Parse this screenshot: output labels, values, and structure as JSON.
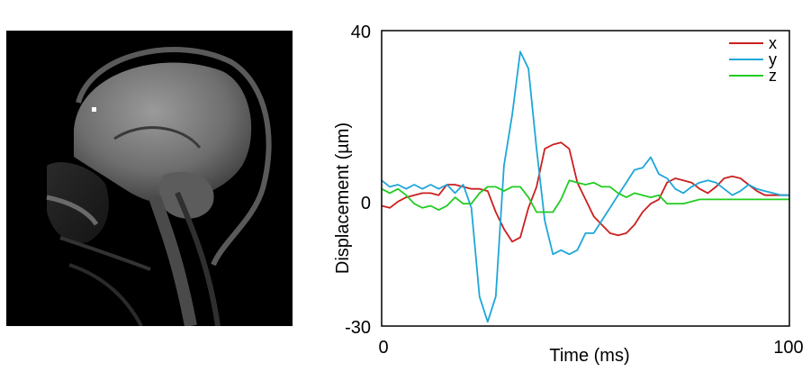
{
  "image": {
    "description_icon": "mri-sagittal-head-icon"
  },
  "chart_data": {
    "type": "line",
    "xlabel": "Time (ms)",
    "ylabel": "Displacement (µm)",
    "xlim": [
      0,
      100
    ],
    "ylim": [
      -30,
      40
    ],
    "xticks": [
      "0",
      "100"
    ],
    "yticks": [
      "40",
      "0",
      "-30"
    ],
    "grid": false,
    "legend_position": "top-right",
    "series": [
      {
        "name": "x",
        "color": "#cc1f1f",
        "x": [
          0,
          2,
          4,
          6,
          8,
          10,
          12,
          14,
          16,
          18,
          20,
          22,
          24,
          26,
          28,
          30,
          32,
          34,
          36,
          38,
          40,
          42,
          44,
          46,
          48,
          50,
          52,
          54,
          56,
          58,
          60,
          62,
          64,
          66,
          68,
          70,
          72,
          74,
          76,
          78,
          80,
          82,
          84,
          86,
          88,
          90,
          92,
          94,
          96,
          98,
          100
        ],
        "y": [
          -1.5,
          -2,
          -0.5,
          0.5,
          1,
          1.5,
          1.5,
          1,
          3.5,
          3.5,
          3,
          2.5,
          2.5,
          2,
          -3,
          -7,
          -10,
          -9,
          -2,
          3,
          12,
          13,
          13.5,
          12,
          4,
          0,
          -4,
          -6,
          -8,
          -8.5,
          -8,
          -6,
          -3,
          -1,
          0,
          4,
          5,
          4.5,
          4,
          2.5,
          1.5,
          3,
          5,
          5.5,
          5,
          3.5,
          2,
          1,
          1,
          1,
          1
        ],
        "y_note": ""
      },
      {
        "name": "y",
        "color": "#1ea7d8",
        "x": [
          0,
          2,
          4,
          6,
          8,
          10,
          12,
          14,
          16,
          18,
          20,
          22,
          24,
          26,
          28,
          30,
          32,
          34,
          36,
          38,
          40,
          42,
          44,
          46,
          48,
          50,
          52,
          54,
          56,
          58,
          60,
          62,
          64,
          66,
          68,
          70,
          72,
          74,
          76,
          78,
          80,
          82,
          84,
          86,
          88,
          90,
          92,
          94,
          96,
          98,
          100
        ],
        "y": [
          4.5,
          3,
          3.5,
          2.5,
          3.5,
          2.5,
          3.5,
          2.5,
          3.5,
          1.5,
          3.5,
          -2,
          -23,
          -29,
          -23,
          8,
          20,
          35,
          31,
          12,
          -5,
          -13,
          -12,
          -13,
          -12,
          -8,
          -8,
          -5,
          -2,
          1,
          4,
          7,
          7.5,
          10,
          6,
          5,
          2.5,
          1.5,
          3,
          4,
          4.5,
          4,
          2.5,
          1,
          2,
          3.5,
          2.5,
          2,
          1.5,
          1,
          1
        ],
        "y_note": ""
      },
      {
        "name": "z",
        "color": "#22cc22",
        "x": [
          0,
          2,
          4,
          6,
          8,
          10,
          12,
          14,
          16,
          18,
          20,
          22,
          24,
          26,
          28,
          30,
          32,
          34,
          36,
          38,
          40,
          42,
          44,
          46,
          48,
          50,
          52,
          54,
          56,
          58,
          60,
          62,
          64,
          66,
          68,
          70,
          72,
          74,
          76,
          78,
          80,
          82,
          84,
          86,
          88,
          90,
          92,
          94,
          96,
          98,
          100
        ],
        "y": [
          2.5,
          1.5,
          2.5,
          1,
          -1,
          -2,
          -1.5,
          -2.5,
          -1.5,
          0.5,
          -1,
          -1,
          1.5,
          3,
          3,
          2,
          3,
          3,
          0.5,
          -3,
          -3,
          -3,
          0,
          4.5,
          4,
          3.5,
          4,
          3,
          3,
          1.5,
          0.5,
          1.5,
          1,
          0.5,
          1,
          -1,
          -1,
          -1,
          -0.5,
          0,
          0,
          0,
          0,
          0,
          0,
          0,
          0,
          0,
          0,
          0,
          0
        ],
        "y_note": ""
      }
    ]
  }
}
